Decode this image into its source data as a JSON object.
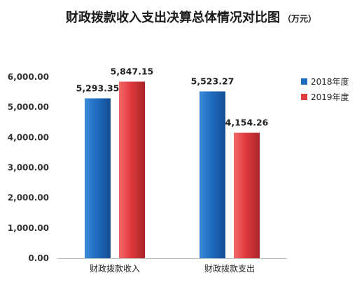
{
  "chart_data": {
    "type": "bar",
    "title": "财政拨款收入支出决算总体情况对比图",
    "unit": "（万元）",
    "categories": [
      "财政拨款收入",
      "财政拨款支出"
    ],
    "series": [
      {
        "name": "2018年度",
        "color": "#1f6cc0",
        "values": [
          5293.35,
          5523.27
        ],
        "labels": [
          "5,293.35",
          "5,523.27"
        ]
      },
      {
        "name": "2019年度",
        "color": "#e03a3e",
        "values": [
          5847.15,
          4154.26
        ],
        "labels": [
          "5,847.15",
          "4,154.26"
        ]
      }
    ],
    "ylim": [
      0,
      6000
    ],
    "yticks": [
      0,
      1000,
      2000,
      3000,
      4000,
      5000,
      6000
    ],
    "ytick_labels": [
      "0.00",
      "1,000.00",
      "2,000.00",
      "3,000.00",
      "4,000.00",
      "5,000.00",
      "6,000.00"
    ],
    "xlabel": "",
    "ylabel": "",
    "grid": false,
    "legend_position": "right"
  }
}
